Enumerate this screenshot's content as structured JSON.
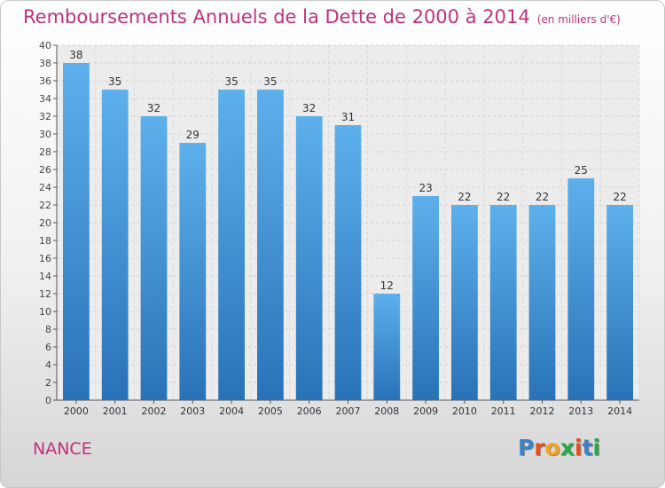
{
  "title": "Remboursements Annuels de la Dette de 2000 à 2014",
  "unit_note": "(en milliers d'€)",
  "city": "NANCE",
  "logo": {
    "text": "Proxiti",
    "letter_colors": [
      "#3b82c4",
      "#e94e1b",
      "#f5a31a",
      "#2aa84a",
      "#e94e1b",
      "#3b82c4",
      "#2aa84a"
    ]
  },
  "colors": {
    "title": "#c3307a",
    "bar": "#4a9ad8",
    "bar_light": "#5db0ec",
    "bar_dark": "#2a72b8"
  },
  "chart_data": {
    "type": "bar",
    "title": "Remboursements Annuels de la Dette de 2000 à 2014",
    "categories": [
      "2000",
      "2001",
      "2002",
      "2003",
      "2004",
      "2005",
      "2006",
      "2007",
      "2008",
      "2009",
      "2010",
      "2011",
      "2012",
      "2013",
      "2014"
    ],
    "values": [
      38,
      35,
      32,
      29,
      35,
      35,
      32,
      31,
      12,
      23,
      22,
      22,
      22,
      25,
      22
    ],
    "yticks": [
      0,
      2,
      4,
      6,
      8,
      10,
      12,
      14,
      16,
      18,
      20,
      22,
      24,
      26,
      28,
      30,
      32,
      34,
      36,
      38,
      40
    ],
    "ylim": [
      0,
      40
    ],
    "grid": true
  }
}
